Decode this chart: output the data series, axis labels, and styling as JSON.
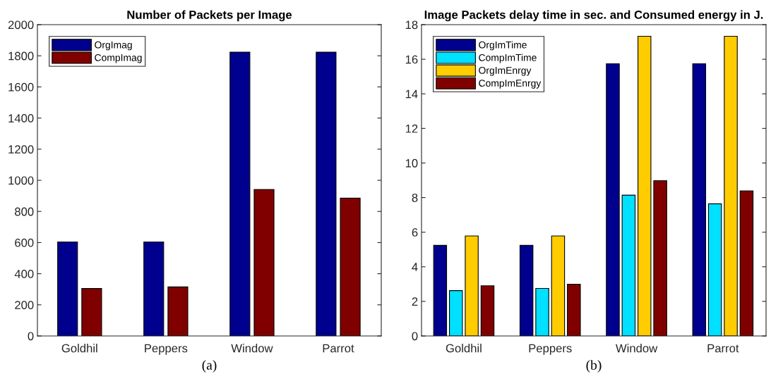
{
  "chart_data": [
    {
      "type": "bar",
      "title": "Number of Packets per Image",
      "categories": [
        "Goldhil",
        "Peppers",
        "Window",
        "Parrot"
      ],
      "series": [
        {
          "name": "OrgImag",
          "color": "#00008f",
          "values": [
            604,
            604,
            1823,
            1823
          ]
        },
        {
          "name": "CompImag",
          "color": "#800000",
          "values": [
            305,
            315,
            941,
            885
          ]
        }
      ],
      "ylim": [
        0,
        2000
      ],
      "yticks": [
        0,
        200,
        400,
        600,
        800,
        1000,
        1200,
        1400,
        1600,
        1800,
        2000
      ],
      "grid": false,
      "legend": "top left",
      "annotations": [
        "(a)"
      ]
    },
    {
      "type": "bar",
      "title": "Image Packets delay time in sec. and Consumed energy in J.",
      "categories": [
        "Goldhil",
        "Peppers",
        "Window",
        "Parrot"
      ],
      "series": [
        {
          "name": "OrgImTime",
          "color": "#00008f",
          "values": [
            5.24,
            5.24,
            15.74,
            15.74
          ]
        },
        {
          "name": "CompImTime",
          "color": "#00e0ff",
          "values": [
            2.62,
            2.75,
            8.14,
            7.64
          ]
        },
        {
          "name": "OrgImEnrgy",
          "color": "#ffcc00",
          "values": [
            5.78,
            5.78,
            17.33,
            17.33
          ]
        },
        {
          "name": "CompImEnrgy",
          "color": "#800000",
          "values": [
            2.9,
            2.99,
            8.98,
            8.39
          ]
        }
      ],
      "ylim": [
        0,
        18
      ],
      "yticks": [
        0,
        2,
        4,
        6,
        8,
        10,
        12,
        14,
        16,
        18
      ],
      "grid": false,
      "legend": "top left",
      "annotations": [
        "(b)"
      ]
    }
  ]
}
